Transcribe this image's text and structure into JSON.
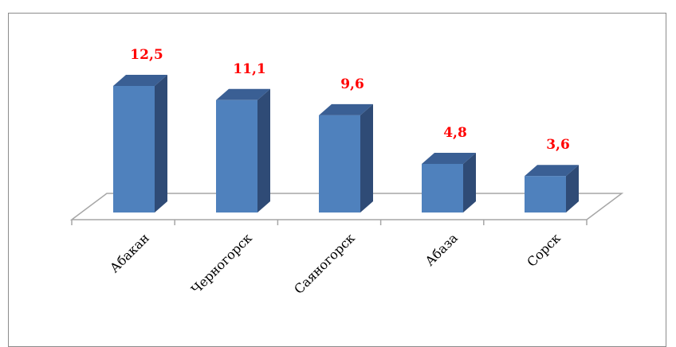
{
  "chart_data": {
    "type": "bar",
    "style": "3d-column",
    "categories": [
      "Абакан",
      "Черногорск",
      "Саяногорск",
      "Абаза",
      "Сорск"
    ],
    "values": [
      12.5,
      11.1,
      9.6,
      4.8,
      3.6
    ],
    "data_labels": [
      "12,5",
      "11,1",
      "9,6",
      "4,8",
      "3,6"
    ],
    "title": "",
    "xlabel": "",
    "ylabel": "",
    "ylim": [
      0,
      12.5
    ],
    "grid": false,
    "legend": "none",
    "colors": {
      "bar_front": "#4f81bd",
      "bar_side": "#2f4b76",
      "bar_top": "#3a5f94",
      "label": "#ff0000",
      "floor": "#a6a6a6"
    }
  }
}
